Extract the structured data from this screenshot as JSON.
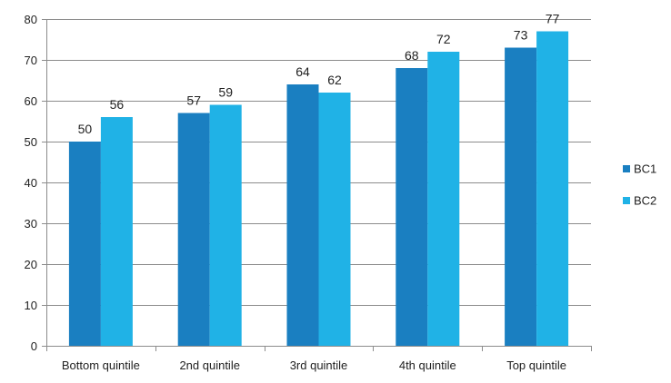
{
  "chart_data": {
    "type": "bar",
    "categories": [
      "Bottom quintile",
      "2nd quintile",
      "3rd quintile",
      "4th quintile",
      "Top quintile"
    ],
    "series": [
      {
        "name": "BC1",
        "values": [
          50,
          57,
          64,
          68,
          73
        ],
        "color": "#1a7fc1"
      },
      {
        "name": "BC2",
        "values": [
          56,
          59,
          62,
          72,
          77
        ],
        "color": "#20b2e6"
      }
    ],
    "ylim": [
      0,
      80
    ],
    "yticks": [
      0,
      10,
      20,
      30,
      40,
      50,
      60,
      70,
      80
    ],
    "grid": true,
    "legend": "right",
    "data_labels": true
  }
}
